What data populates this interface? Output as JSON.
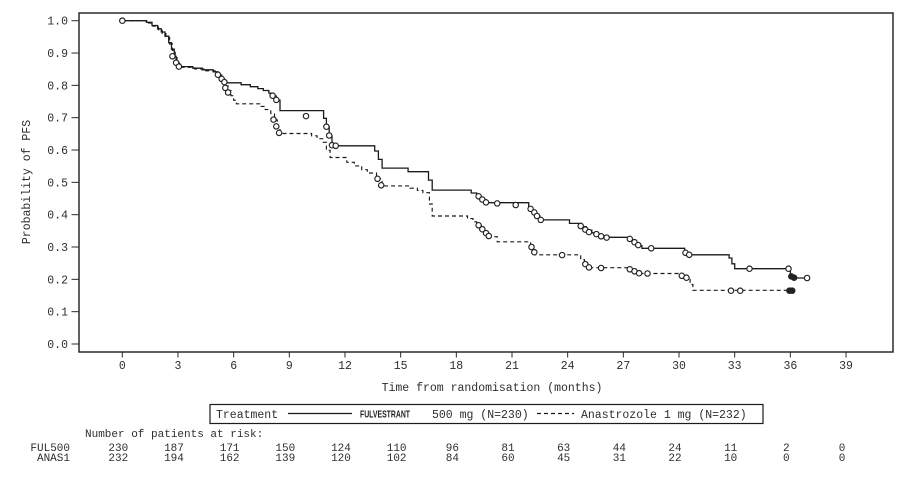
{
  "figure": {
    "background": "#ffffff",
    "ink_color": "#1c1c1c",
    "text_color": "#2e2e2e"
  },
  "chart_data": {
    "type": "line",
    "subtype": "kaplan_meier_step",
    "title": "",
    "xlabel": "Time from randomisation (months)",
    "ylabel": "Probability of PFS",
    "xticks": [
      0,
      3,
      6,
      9,
      12,
      15,
      18,
      21,
      24,
      27,
      30,
      33,
      36,
      39
    ],
    "yticks": [
      0.0,
      0.1,
      0.2,
      0.3,
      0.4,
      0.5,
      0.6,
      0.7,
      0.8,
      0.9,
      1.0
    ],
    "xlim": [
      -2.3,
      41.5
    ],
    "ylim": [
      0,
      1.05
    ],
    "grid": false,
    "legend_position": "bottom",
    "series": [
      {
        "name": "FULVESTRANT 500 mg (N=230)",
        "line": "solid",
        "steps": [
          [
            0,
            1.0
          ],
          [
            1.3,
            0.995
          ],
          [
            1.6,
            0.985
          ],
          [
            1.9,
            0.975
          ],
          [
            2.1,
            0.965
          ],
          [
            2.3,
            0.952
          ],
          [
            2.5,
            0.932
          ],
          [
            2.65,
            0.912
          ],
          [
            2.8,
            0.89
          ],
          [
            2.9,
            0.872
          ],
          [
            3.05,
            0.858
          ],
          [
            3.8,
            0.853
          ],
          [
            4.3,
            0.848
          ],
          [
            4.9,
            0.842
          ],
          [
            5.15,
            0.832
          ],
          [
            5.35,
            0.82
          ],
          [
            5.5,
            0.808
          ],
          [
            6.4,
            0.802
          ],
          [
            6.9,
            0.796
          ],
          [
            7.3,
            0.79
          ],
          [
            7.6,
            0.784
          ],
          [
            7.9,
            0.776
          ],
          [
            8.1,
            0.767
          ],
          [
            8.3,
            0.754
          ],
          [
            8.5,
            0.722
          ],
          [
            10.85,
            0.698
          ],
          [
            11.0,
            0.672
          ],
          [
            11.15,
            0.644
          ],
          [
            11.3,
            0.613
          ],
          [
            13.6,
            0.597
          ],
          [
            13.8,
            0.571
          ],
          [
            14.0,
            0.544
          ],
          [
            15.4,
            0.533
          ],
          [
            16.5,
            0.507
          ],
          [
            16.7,
            0.476
          ],
          [
            18.8,
            0.467
          ],
          [
            19.1,
            0.457
          ],
          [
            19.35,
            0.447
          ],
          [
            19.6,
            0.437
          ],
          [
            21.9,
            0.419
          ],
          [
            22.1,
            0.408
          ],
          [
            22.3,
            0.397
          ],
          [
            22.5,
            0.384
          ],
          [
            24.1,
            0.373
          ],
          [
            24.75,
            0.363
          ],
          [
            25.0,
            0.352
          ],
          [
            25.3,
            0.344
          ],
          [
            25.65,
            0.337
          ],
          [
            25.9,
            0.33
          ],
          [
            27.4,
            0.322
          ],
          [
            27.6,
            0.313
          ],
          [
            27.8,
            0.304
          ],
          [
            28.0,
            0.296
          ],
          [
            30.3,
            0.284
          ],
          [
            30.5,
            0.276
          ],
          [
            32.7,
            0.266
          ],
          [
            32.85,
            0.248
          ],
          [
            33.0,
            0.233
          ],
          [
            36.0,
            0.209
          ],
          [
            36.2,
            0.204
          ],
          [
            37.0,
            0.204
          ]
        ],
        "censors": [
          [
            0,
            1.0
          ],
          [
            2.7,
            0.89
          ],
          [
            2.9,
            0.87
          ],
          [
            3.05,
            0.858
          ],
          [
            5.15,
            0.833
          ],
          [
            5.35,
            0.82
          ],
          [
            5.5,
            0.81
          ],
          [
            8.1,
            0.768
          ],
          [
            8.3,
            0.755
          ],
          [
            9.9,
            0.705
          ],
          [
            11.0,
            0.672
          ],
          [
            11.15,
            0.645
          ],
          [
            11.3,
            0.615
          ],
          [
            11.5,
            0.613
          ],
          [
            19.2,
            0.457
          ],
          [
            19.4,
            0.447
          ],
          [
            19.6,
            0.438
          ],
          [
            20.2,
            0.435
          ],
          [
            21.2,
            0.43
          ],
          [
            22.0,
            0.418
          ],
          [
            22.2,
            0.407
          ],
          [
            22.35,
            0.396
          ],
          [
            22.55,
            0.384
          ],
          [
            24.7,
            0.365
          ],
          [
            24.95,
            0.354
          ],
          [
            25.15,
            0.346
          ],
          [
            25.55,
            0.34
          ],
          [
            25.8,
            0.333
          ],
          [
            26.1,
            0.329
          ],
          [
            27.35,
            0.325
          ],
          [
            27.6,
            0.315
          ],
          [
            27.8,
            0.306
          ],
          [
            28.5,
            0.296
          ],
          [
            30.35,
            0.282
          ],
          [
            30.55,
            0.276
          ],
          [
            33.8,
            0.233
          ],
          [
            35.9,
            0.233
          ],
          [
            36.9,
            0.204
          ]
        ],
        "censors_filled": [
          [
            36.05,
            0.209
          ],
          [
            36.2,
            0.205
          ]
        ]
      },
      {
        "name": "Anastrozole 1 mg (N=232)",
        "line": "dashed",
        "steps": [
          [
            0,
            1.0
          ],
          [
            1.35,
            0.993
          ],
          [
            1.65,
            0.983
          ],
          [
            1.95,
            0.972
          ],
          [
            2.15,
            0.96
          ],
          [
            2.35,
            0.948
          ],
          [
            2.55,
            0.928
          ],
          [
            2.7,
            0.908
          ],
          [
            2.85,
            0.886
          ],
          [
            2.95,
            0.868
          ],
          [
            3.1,
            0.856
          ],
          [
            3.9,
            0.851
          ],
          [
            4.4,
            0.845
          ],
          [
            5.0,
            0.838
          ],
          [
            5.2,
            0.828
          ],
          [
            5.4,
            0.813
          ],
          [
            5.55,
            0.798
          ],
          [
            5.7,
            0.784
          ],
          [
            5.85,
            0.768
          ],
          [
            6.0,
            0.754
          ],
          [
            6.15,
            0.743
          ],
          [
            7.4,
            0.735
          ],
          [
            7.7,
            0.725
          ],
          [
            8.0,
            0.713
          ],
          [
            8.2,
            0.693
          ],
          [
            8.35,
            0.671
          ],
          [
            8.5,
            0.651
          ],
          [
            10.2,
            0.644
          ],
          [
            10.5,
            0.635
          ],
          [
            10.8,
            0.624
          ],
          [
            11.0,
            0.599
          ],
          [
            11.2,
            0.577
          ],
          [
            12.1,
            0.562
          ],
          [
            12.5,
            0.551
          ],
          [
            12.9,
            0.539
          ],
          [
            13.2,
            0.529
          ],
          [
            13.7,
            0.511
          ],
          [
            14.0,
            0.489
          ],
          [
            15.5,
            0.482
          ],
          [
            15.9,
            0.475
          ],
          [
            16.2,
            0.468
          ],
          [
            16.55,
            0.433
          ],
          [
            16.7,
            0.396
          ],
          [
            18.6,
            0.388
          ],
          [
            18.9,
            0.378
          ],
          [
            19.1,
            0.367
          ],
          [
            19.35,
            0.354
          ],
          [
            19.55,
            0.341
          ],
          [
            19.8,
            0.332
          ],
          [
            20.2,
            0.316
          ],
          [
            22.0,
            0.307
          ],
          [
            22.1,
            0.292
          ],
          [
            22.25,
            0.276
          ],
          [
            24.7,
            0.261
          ],
          [
            24.9,
            0.246
          ],
          [
            25.1,
            0.236
          ],
          [
            27.4,
            0.23
          ],
          [
            27.65,
            0.224
          ],
          [
            27.9,
            0.218
          ],
          [
            30.2,
            0.21
          ],
          [
            30.45,
            0.203
          ],
          [
            30.6,
            0.184
          ],
          [
            30.75,
            0.166
          ],
          [
            36.1,
            0.166
          ]
        ],
        "censors": [
          [
            5.55,
            0.792
          ],
          [
            5.7,
            0.778
          ],
          [
            8.15,
            0.694
          ],
          [
            8.3,
            0.673
          ],
          [
            8.45,
            0.653
          ],
          [
            13.75,
            0.511
          ],
          [
            13.95,
            0.491
          ],
          [
            19.2,
            0.367
          ],
          [
            19.4,
            0.355
          ],
          [
            19.6,
            0.343
          ],
          [
            19.75,
            0.334
          ],
          [
            22.05,
            0.3
          ],
          [
            22.2,
            0.284
          ],
          [
            23.7,
            0.275
          ],
          [
            24.95,
            0.247
          ],
          [
            25.15,
            0.237
          ],
          [
            25.8,
            0.235
          ],
          [
            27.35,
            0.231
          ],
          [
            27.6,
            0.225
          ],
          [
            27.85,
            0.219
          ],
          [
            28.3,
            0.218
          ],
          [
            30.15,
            0.211
          ],
          [
            30.4,
            0.205
          ],
          [
            32.8,
            0.165
          ],
          [
            33.3,
            0.165
          ]
        ],
        "censors_filled": [
          [
            35.95,
            0.165
          ],
          [
            36.1,
            0.165
          ]
        ]
      }
    ]
  },
  "legend": {
    "title": "Treatment",
    "entries": [
      {
        "swatch": "solid",
        "brand": "FULVESTRANT",
        "label": "500 mg (N=230)"
      },
      {
        "swatch": "dashed",
        "brand": "",
        "label": "Anastrozole 1 mg (N=232)"
      }
    ]
  },
  "risk_table": {
    "heading": "Number of patients at risk:",
    "columns_months": [
      0,
      3,
      6,
      9,
      12,
      15,
      18,
      21,
      24,
      27,
      30,
      33,
      36,
      39
    ],
    "rows": [
      {
        "label": "FUL500",
        "values": [
          230,
          187,
          171,
          150,
          124,
          110,
          96,
          81,
          63,
          44,
          24,
          11,
          2,
          0
        ]
      },
      {
        "label": "ANAS1",
        "values": [
          232,
          194,
          162,
          139,
          120,
          102,
          84,
          60,
          45,
          31,
          22,
          10,
          0,
          0
        ]
      }
    ]
  }
}
